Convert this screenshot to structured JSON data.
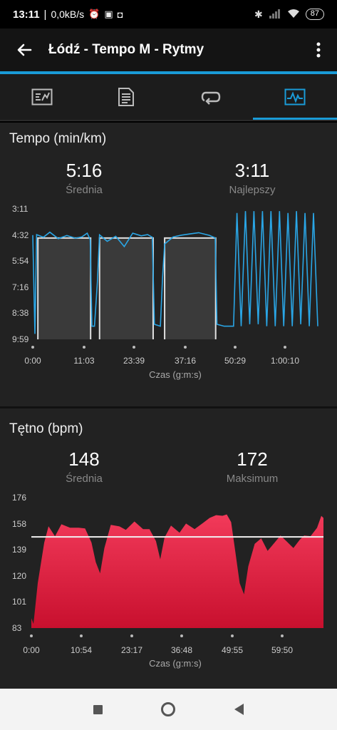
{
  "status": {
    "time": "13:11",
    "speed": "0,0kB/s",
    "battery": "87"
  },
  "app_bar": {
    "title": "Łódź - Tempo M - Rytmy"
  },
  "tabs": [
    {
      "icon": "summary-icon"
    },
    {
      "icon": "details-icon"
    },
    {
      "icon": "laps-icon"
    },
    {
      "icon": "charts-icon",
      "active": true
    }
  ],
  "pace": {
    "title": "Tempo (min/km)",
    "avg_value": "5:16",
    "avg_label": "Średnia",
    "best_value": "3:11",
    "best_label": "Najlepszy",
    "x_title": "Czas (g:m:s)"
  },
  "heart": {
    "title": "Tętno (bpm)",
    "avg_value": "148",
    "avg_label": "Średnia",
    "max_value": "172",
    "max_label": "Maksimum",
    "x_title": "Czas (g:m:s)"
  },
  "chart_data": [
    {
      "type": "line",
      "title": "Tempo (min/km)",
      "xlabel": "Czas (g:m:s)",
      "ylabel": "",
      "y_ticks": [
        "3:11",
        "4:32",
        "5:54",
        "7:16",
        "8:38",
        "9:59"
      ],
      "x_ticks": [
        "0:00",
        "11:03",
        "23:39",
        "37:16",
        "50:29",
        "1:00:10"
      ],
      "series": [
        {
          "values": [
            [
              0.0,
              4.7
            ],
            [
              0.5,
              9.7
            ],
            [
              0.9,
              4.6
            ],
            [
              2.5,
              4.7
            ],
            [
              4.0,
              4.4
            ],
            [
              6.0,
              4.7
            ],
            [
              8.0,
              4.5
            ],
            [
              10.0,
              4.6
            ],
            [
              11.5,
              4.5
            ],
            [
              12.8,
              4.6
            ],
            [
              13.5,
              4.9
            ],
            [
              13.9,
              9.3
            ],
            [
              14.5,
              9.3
            ],
            [
              15.2,
              7.0
            ],
            [
              15.7,
              4.5
            ],
            [
              17.5,
              4.8
            ],
            [
              19.5,
              4.5
            ],
            [
              21.5,
              5.0
            ],
            [
              23.5,
              4.6
            ],
            [
              25.5,
              4.7
            ],
            [
              27.0,
              4.6
            ],
            [
              28.1,
              4.7
            ],
            [
              28.6,
              9.2
            ],
            [
              30.0,
              9.3
            ],
            [
              30.5,
              6.8
            ],
            [
              31.0,
              4.9
            ],
            [
              33.0,
              4.5
            ],
            [
              35.0,
              4.7
            ],
            [
              37.0,
              4.6
            ],
            [
              39.0,
              4.5
            ],
            [
              41.5,
              4.6
            ],
            [
              42.9,
              4.7
            ],
            [
              43.3,
              9.2
            ],
            [
              45.0,
              9.3
            ],
            [
              47.2,
              9.3
            ],
            [
              48.0,
              3.4
            ],
            [
              49.0,
              9.3
            ],
            [
              50.0,
              3.3
            ],
            [
              51.0,
              9.2
            ],
            [
              52.0,
              3.3
            ],
            [
              53.0,
              9.2
            ],
            [
              54.0,
              3.3
            ],
            [
              55.0,
              9.3
            ],
            [
              56.0,
              3.3
            ],
            [
              57.0,
              9.3
            ],
            [
              58.0,
              3.3
            ],
            [
              59.0,
              9.3
            ],
            [
              60.0,
              3.4
            ],
            [
              61.0,
              9.3
            ],
            [
              62.0,
              3.3
            ],
            [
              63.0,
              9.2
            ],
            [
              64.0,
              3.4
            ],
            [
              65.0,
              9.3
            ],
            [
              66.0,
              3.4
            ],
            [
              67.0,
              9.3
            ]
          ]
        }
      ],
      "segments": [
        [
          1.2,
          13.6
        ],
        [
          15.7,
          28.3
        ],
        [
          31.0,
          43.0
        ]
      ]
    },
    {
      "type": "area",
      "title": "Tętno (bpm)",
      "xlabel": "Czas (g:m:s)",
      "ylabel": "",
      "y_ticks": [
        176,
        158,
        139,
        120,
        101,
        83
      ],
      "ylim": [
        83,
        176
      ],
      "x_ticks": [
        "0:00",
        "10:54",
        "23:17",
        "36:48",
        "49:55",
        "59:50"
      ],
      "average": 148,
      "series": [
        {
          "values": [
            [
              0.0,
              90
            ],
            [
              0.5,
              86
            ],
            [
              1.5,
              115
            ],
            [
              3.0,
              145
            ],
            [
              4.0,
              155
            ],
            [
              5.5,
              150
            ],
            [
              7.0,
              157
            ],
            [
              9.0,
              153
            ],
            [
              11.0,
              155
            ],
            [
              12.5,
              153
            ],
            [
              14.0,
              145
            ],
            [
              15.0,
              130
            ],
            [
              16.0,
              122
            ],
            [
              17.0,
              140
            ],
            [
              18.5,
              155
            ],
            [
              20.5,
              156
            ],
            [
              22.0,
              152
            ],
            [
              24.0,
              160
            ],
            [
              26.0,
              153
            ],
            [
              27.5,
              155
            ],
            [
              29.0,
              145
            ],
            [
              30.0,
              132
            ],
            [
              31.0,
              148
            ],
            [
              32.5,
              155
            ],
            [
              34.5,
              152
            ],
            [
              36.0,
              157
            ],
            [
              38.0,
              155
            ],
            [
              40.0,
              158
            ],
            [
              41.5,
              160
            ],
            [
              43.0,
              164
            ],
            [
              44.5,
              162
            ],
            [
              45.5,
              165
            ],
            [
              46.5,
              158
            ],
            [
              47.5,
              137
            ],
            [
              48.5,
              115
            ],
            [
              49.5,
              107
            ],
            [
              50.5,
              127
            ],
            [
              52.0,
              142
            ],
            [
              53.5,
              148
            ],
            [
              55.0,
              138
            ],
            [
              56.5,
              145
            ],
            [
              58.0,
              149
            ],
            [
              59.5,
              143
            ],
            [
              61.0,
              140
            ],
            [
              62.5,
              145
            ],
            [
              63.5,
              150
            ],
            [
              65.0,
              148
            ],
            [
              66.5,
              156
            ],
            [
              67.5,
              163
            ],
            [
              68.0,
              160
            ]
          ]
        }
      ]
    }
  ]
}
